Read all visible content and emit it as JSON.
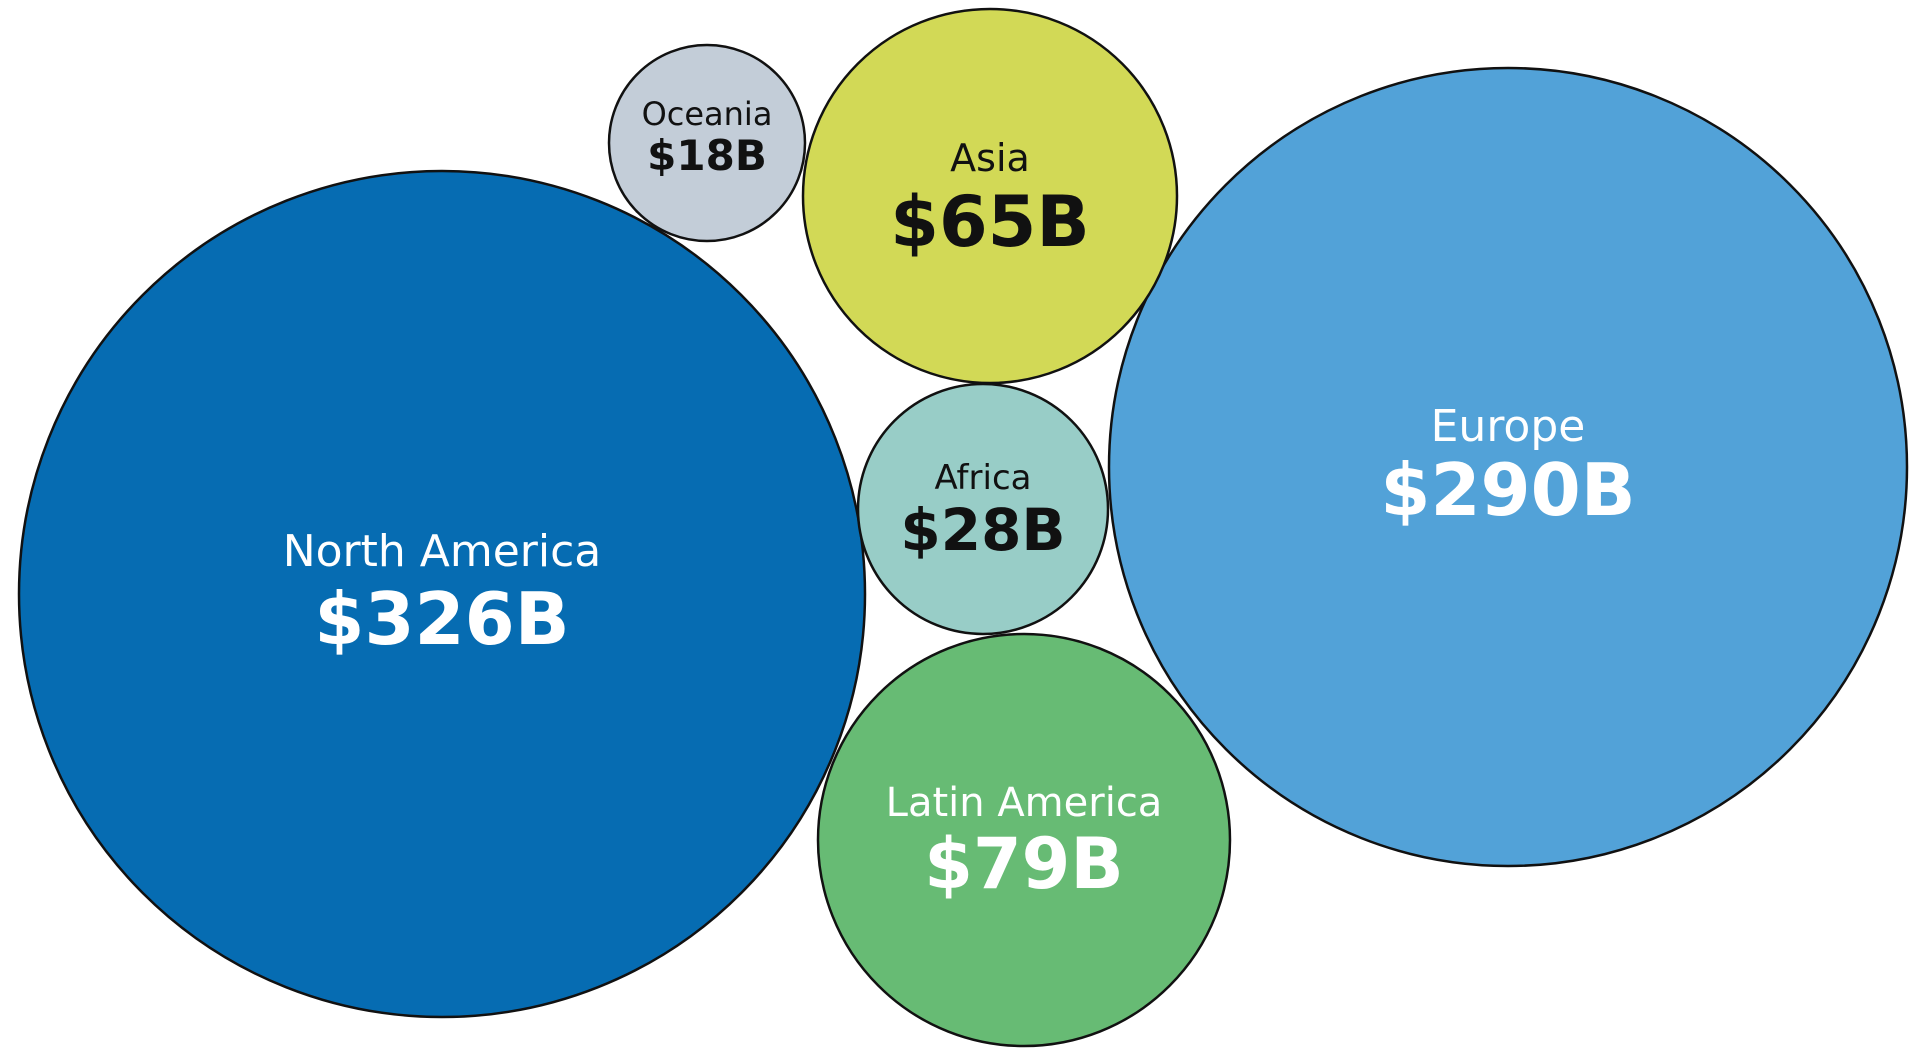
{
  "chart_data": {
    "type": "bubble",
    "title": "",
    "unit": "$B",
    "series": [
      {
        "name": "North America",
        "value": 326,
        "label": "$326B",
        "color": "#066cb2",
        "text_color": "#ffffff"
      },
      {
        "name": "Europe",
        "value": 290,
        "label": "$290B",
        "color": "#52a2d8",
        "text_color": "#ffffff"
      },
      {
        "name": "Latin America",
        "value": 79,
        "label": "$79B",
        "color": "#67bb74",
        "text_color": "#ffffff"
      },
      {
        "name": "Asia",
        "value": 65,
        "label": "$65B",
        "color": "#d2d956",
        "text_color": "#111111"
      },
      {
        "name": "Africa",
        "value": 28,
        "label": "$28B",
        "color": "#98cdc7",
        "text_color": "#111111"
      },
      {
        "name": "Oceania",
        "value": 18,
        "label": "$18B",
        "color": "#c3cdd8",
        "text_color": "#111111"
      }
    ]
  }
}
